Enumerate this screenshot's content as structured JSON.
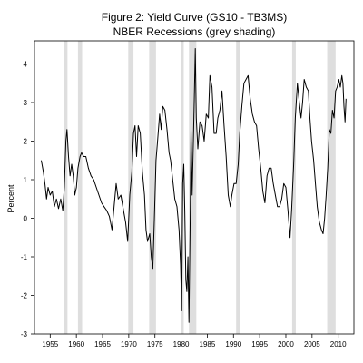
{
  "chart_data": {
    "type": "line",
    "title": "Figure 2: Yield Curve (GS10 - TB3MS)",
    "subtitle": "NBER Recessions (grey shading)",
    "xlabel": "",
    "ylabel": "Percent",
    "xlim": [
      1952,
      2013
    ],
    "ylim": [
      -3,
      4.6
    ],
    "x_ticks": [
      1955,
      1960,
      1965,
      1970,
      1975,
      1980,
      1985,
      1990,
      1995,
      2000,
      2005,
      2010
    ],
    "y_ticks": [
      -3,
      -2,
      -1,
      0,
      1,
      2,
      3,
      4
    ],
    "grid": false,
    "line_color": "#000000",
    "recession_color": "#dedede",
    "recessions": [
      [
        1957.6,
        1958.3
      ],
      [
        1960.3,
        1961.1
      ],
      [
        1969.9,
        1970.9
      ],
      [
        1973.9,
        1975.2
      ],
      [
        1980.0,
        1980.5
      ],
      [
        1981.5,
        1982.9
      ],
      [
        1990.5,
        1991.2
      ],
      [
        2001.2,
        2001.9
      ],
      [
        2007.9,
        2009.5
      ]
    ],
    "series": [
      {
        "values": [
          [
            1953.3,
            1.5
          ],
          [
            1953.7,
            1.2
          ],
          [
            1954.0,
            0.9
          ],
          [
            1954.3,
            0.5
          ],
          [
            1954.6,
            0.8
          ],
          [
            1955.0,
            0.6
          ],
          [
            1955.4,
            0.7
          ],
          [
            1955.8,
            0.3
          ],
          [
            1956.2,
            0.5
          ],
          [
            1956.6,
            0.25
          ],
          [
            1957.0,
            0.5
          ],
          [
            1957.4,
            0.2
          ],
          [
            1957.7,
            0.8
          ],
          [
            1958.0,
            2.0
          ],
          [
            1958.2,
            2.3
          ],
          [
            1958.5,
            1.6
          ],
          [
            1958.8,
            1.1
          ],
          [
            1959.1,
            1.4
          ],
          [
            1959.4,
            1.1
          ],
          [
            1959.7,
            0.6
          ],
          [
            1960.0,
            0.8
          ],
          [
            1960.3,
            1.3
          ],
          [
            1960.7,
            1.6
          ],
          [
            1961.0,
            1.7
          ],
          [
            1961.4,
            1.6
          ],
          [
            1961.8,
            1.6
          ],
          [
            1962.3,
            1.3
          ],
          [
            1962.8,
            1.1
          ],
          [
            1963.3,
            1.0
          ],
          [
            1963.8,
            0.8
          ],
          [
            1964.3,
            0.6
          ],
          [
            1964.8,
            0.4
          ],
          [
            1965.3,
            0.3
          ],
          [
            1965.8,
            0.2
          ],
          [
            1966.3,
            0.05
          ],
          [
            1966.8,
            -0.3
          ],
          [
            1967.2,
            0.3
          ],
          [
            1967.6,
            0.9
          ],
          [
            1968.0,
            0.5
          ],
          [
            1968.5,
            0.6
          ],
          [
            1969.0,
            0.2
          ],
          [
            1969.4,
            -0.1
          ],
          [
            1969.8,
            -0.6
          ],
          [
            1970.2,
            0.6
          ],
          [
            1970.6,
            1.2
          ],
          [
            1970.9,
            2.2
          ],
          [
            1971.2,
            2.4
          ],
          [
            1971.5,
            1.6
          ],
          [
            1971.8,
            2.4
          ],
          [
            1972.2,
            2.2
          ],
          [
            1972.6,
            1.2
          ],
          [
            1973.0,
            0.6
          ],
          [
            1973.3,
            -0.3
          ],
          [
            1973.6,
            -0.6
          ],
          [
            1974.0,
            -0.4
          ],
          [
            1974.3,
            -1.0
          ],
          [
            1974.6,
            -1.3
          ],
          [
            1974.9,
            0.0
          ],
          [
            1975.2,
            1.5
          ],
          [
            1975.5,
            2.0
          ],
          [
            1975.9,
            2.7
          ],
          [
            1976.2,
            2.3
          ],
          [
            1976.5,
            2.9
          ],
          [
            1976.9,
            2.8
          ],
          [
            1977.3,
            2.3
          ],
          [
            1977.7,
            1.7
          ],
          [
            1978.0,
            1.5
          ],
          [
            1978.4,
            1.0
          ],
          [
            1978.8,
            0.5
          ],
          [
            1979.2,
            0.3
          ],
          [
            1979.6,
            -0.3
          ],
          [
            1979.9,
            -1.2
          ],
          [
            1980.1,
            -2.4
          ],
          [
            1980.3,
            0.9
          ],
          [
            1980.5,
            1.4
          ],
          [
            1980.7,
            0.2
          ],
          [
            1980.9,
            -1.6
          ],
          [
            1981.1,
            -1.9
          ],
          [
            1981.3,
            -1.0
          ],
          [
            1981.5,
            -2.7
          ],
          [
            1981.7,
            -0.4
          ],
          [
            1981.9,
            2.3
          ],
          [
            1982.1,
            0.6
          ],
          [
            1982.3,
            1.7
          ],
          [
            1982.5,
            3.0
          ],
          [
            1982.7,
            4.4
          ],
          [
            1982.9,
            2.6
          ],
          [
            1983.2,
            1.8
          ],
          [
            1983.6,
            2.5
          ],
          [
            1984.0,
            2.4
          ],
          [
            1984.4,
            2.0
          ],
          [
            1984.8,
            2.7
          ],
          [
            1985.2,
            2.6
          ],
          [
            1985.5,
            3.7
          ],
          [
            1985.9,
            3.4
          ],
          [
            1986.3,
            2.2
          ],
          [
            1986.7,
            2.2
          ],
          [
            1987.0,
            2.6
          ],
          [
            1987.4,
            2.8
          ],
          [
            1987.8,
            3.3
          ],
          [
            1988.2,
            2.4
          ],
          [
            1988.6,
            1.6
          ],
          [
            1989.0,
            0.6
          ],
          [
            1989.4,
            0.3
          ],
          [
            1989.7,
            0.6
          ],
          [
            1990.1,
            0.9
          ],
          [
            1990.5,
            0.9
          ],
          [
            1990.9,
            1.4
          ],
          [
            1991.2,
            2.2
          ],
          [
            1991.6,
            2.9
          ],
          [
            1992.0,
            3.5
          ],
          [
            1992.4,
            3.6
          ],
          [
            1992.8,
            3.7
          ],
          [
            1993.2,
            3.1
          ],
          [
            1993.6,
            2.7
          ],
          [
            1994.0,
            2.5
          ],
          [
            1994.4,
            2.4
          ],
          [
            1994.8,
            1.8
          ],
          [
            1995.2,
            1.3
          ],
          [
            1995.6,
            0.7
          ],
          [
            1996.0,
            0.4
          ],
          [
            1996.4,
            1.1
          ],
          [
            1996.8,
            1.3
          ],
          [
            1997.2,
            1.3
          ],
          [
            1997.6,
            0.9
          ],
          [
            1998.0,
            0.6
          ],
          [
            1998.4,
            0.3
          ],
          [
            1998.8,
            0.3
          ],
          [
            1999.2,
            0.5
          ],
          [
            1999.6,
            0.9
          ],
          [
            2000.0,
            0.8
          ],
          [
            2000.4,
            0.2
          ],
          [
            2000.8,
            -0.5
          ],
          [
            2001.1,
            0.2
          ],
          [
            2001.5,
            1.4
          ],
          [
            2001.8,
            2.6
          ],
          [
            2002.2,
            3.5
          ],
          [
            2002.5,
            3.1
          ],
          [
            2002.9,
            2.6
          ],
          [
            2003.2,
            3.0
          ],
          [
            2003.5,
            3.6
          ],
          [
            2003.9,
            3.4
          ],
          [
            2004.3,
            3.3
          ],
          [
            2004.6,
            2.6
          ],
          [
            2004.9,
            2.0
          ],
          [
            2005.3,
            1.5
          ],
          [
            2005.7,
            0.8
          ],
          [
            2006.0,
            0.3
          ],
          [
            2006.4,
            -0.1
          ],
          [
            2006.8,
            -0.3
          ],
          [
            2007.1,
            -0.4
          ],
          [
            2007.4,
            0.0
          ],
          [
            2007.7,
            0.6
          ],
          [
            2008.0,
            1.3
          ],
          [
            2008.3,
            2.3
          ],
          [
            2008.6,
            2.2
          ],
          [
            2008.9,
            2.8
          ],
          [
            2009.2,
            2.6
          ],
          [
            2009.5,
            3.3
          ],
          [
            2009.8,
            3.4
          ],
          [
            2010.1,
            3.6
          ],
          [
            2010.4,
            3.4
          ],
          [
            2010.7,
            3.7
          ],
          [
            2010.9,
            3.5
          ],
          [
            2011.1,
            2.9
          ],
          [
            2011.3,
            2.5
          ],
          [
            2011.5,
            3.1
          ]
        ]
      }
    ]
  }
}
